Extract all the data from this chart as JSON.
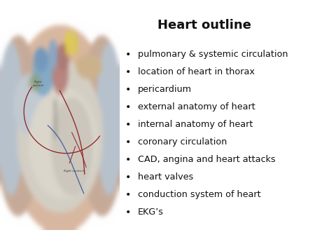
{
  "title": "Heart outline",
  "title_fontsize": 13,
  "title_fontweight": "bold",
  "bullet_items": [
    "pulmonary & systemic circulation",
    "location of heart in thorax",
    "pericardium",
    "external anatomy of heart",
    "internal anatomy of heart",
    "coronary circulation",
    "CAD, angina and heart attacks",
    "heart valves",
    "conduction system of heart",
    "EKG’s"
  ],
  "bullet_fontsize": 9.2,
  "text_color": "#111111",
  "background_color": "#ffffff"
}
